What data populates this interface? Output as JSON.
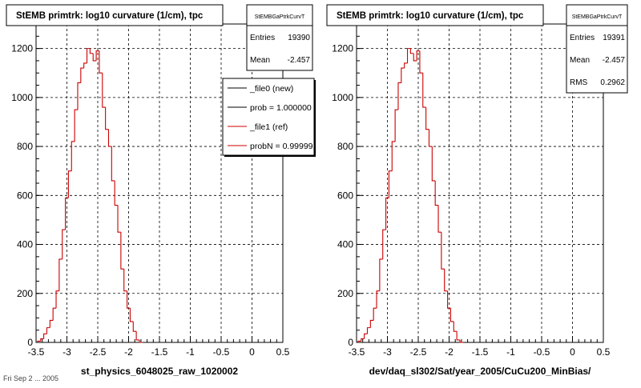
{
  "panels": [
    {
      "title": "StEMB primtrk: log10 curvature (1/cm), tpc",
      "xlabel": "st_physics_6048025_raw_1020002",
      "stats": {
        "name": "StEMBGaPtrkCurvT",
        "rows": [
          {
            "label": "Entries",
            "value": "19390"
          },
          {
            "label": "Mean",
            "value": "-2.457"
          }
        ]
      },
      "legend": {
        "entries": [
          {
            "label": "_file0 (new)",
            "color": "#000000"
          },
          {
            "label": "prob = 1.000000",
            "color": "#000000"
          },
          {
            "label": "_file1 (ref)",
            "color": "#cc0000"
          },
          {
            "label": "probN = 0.999991",
            "color": "#cc0000"
          }
        ]
      }
    },
    {
      "title": "StEMB primtrk: log10 curvature (1/cm), tpc",
      "xlabel": "dev/daq_sl302/Sat/year_2005/CuCu200_MinBias/",
      "stats": {
        "name": "StEMBGaPtrkCurvT",
        "rows": [
          {
            "label": "Entries",
            "value": "19391"
          },
          {
            "label": "Mean",
            "value": "-2.457"
          },
          {
            "label": "RMS",
            "value": "0.2962"
          }
        ]
      },
      "legend": null
    }
  ],
  "footer": "Fri Sep 2 ... 2005",
  "chart_data": [
    {
      "type": "bar",
      "title": "StEMB primtrk: log10 curvature (1/cm), tpc",
      "xlabel": "st_physics_6048025_raw_1020002",
      "ylabel": "",
      "xlim": [
        -3.5,
        0.5
      ],
      "ylim": [
        0,
        1300
      ],
      "xticks": [
        "-3.5",
        "-3",
        "-2.5",
        "-2",
        "-1.5",
        "-1",
        "-0.5",
        "0",
        "0.5"
      ],
      "yticks": [
        "0",
        "200",
        "400",
        "600",
        "800",
        "1000",
        "1200"
      ],
      "grid": true,
      "bin_width": 0.05,
      "x": [
        -3.45,
        -3.4,
        -3.35,
        -3.3,
        -3.25,
        -3.2,
        -3.15,
        -3.1,
        -3.05,
        -3.0,
        -2.95,
        -2.9,
        -2.85,
        -2.8,
        -2.75,
        -2.7,
        -2.65,
        -2.6,
        -2.55,
        -2.5,
        -2.45,
        -2.4,
        -2.35,
        -2.3,
        -2.25,
        -2.2,
        -2.15,
        -2.1,
        -2.05,
        -2.0,
        -1.95,
        -1.9,
        -1.85,
        -1.8
      ],
      "series": [
        {
          "name": "_file1 (ref)",
          "color": "#cc0000",
          "values": [
            5,
            15,
            35,
            60,
            90,
            140,
            210,
            340,
            460,
            590,
            700,
            820,
            950,
            1060,
            1120,
            1140,
            1200,
            1180,
            1150,
            1190,
            1100,
            960,
            870,
            800,
            660,
            560,
            450,
            300,
            210,
            140,
            85,
            45,
            10,
            0
          ]
        }
      ]
    },
    {
      "type": "bar",
      "title": "StEMB primtrk: log10 curvature (1/cm), tpc",
      "xlabel": "dev/daq_sl302/Sat/year_2005/CuCu200_MinBias/",
      "ylabel": "",
      "xlim": [
        -3.5,
        0.5
      ],
      "ylim": [
        0,
        1300
      ],
      "xticks": [
        "-3.5",
        "-3",
        "-2.5",
        "-2",
        "-1.5",
        "-1",
        "-0.5",
        "0",
        "0.5"
      ],
      "yticks": [
        "0",
        "200",
        "400",
        "600",
        "800",
        "1000",
        "1200"
      ],
      "grid": true,
      "bin_width": 0.05,
      "x": [
        -3.45,
        -3.4,
        -3.35,
        -3.3,
        -3.25,
        -3.2,
        -3.15,
        -3.1,
        -3.05,
        -3.0,
        -2.95,
        -2.9,
        -2.85,
        -2.8,
        -2.75,
        -2.7,
        -2.65,
        -2.6,
        -2.55,
        -2.5,
        -2.45,
        -2.4,
        -2.35,
        -2.3,
        -2.25,
        -2.2,
        -2.15,
        -2.1,
        -2.05,
        -2.0,
        -1.95,
        -1.9,
        -1.85,
        -1.8
      ],
      "series": [
        {
          "name": "_file1 (ref)",
          "color": "#cc0000",
          "values": [
            5,
            15,
            35,
            60,
            90,
            140,
            210,
            340,
            460,
            590,
            700,
            820,
            950,
            1060,
            1120,
            1140,
            1200,
            1180,
            1150,
            1190,
            1100,
            960,
            870,
            800,
            660,
            560,
            450,
            300,
            210,
            140,
            85,
            45,
            10,
            0
          ]
        }
      ]
    }
  ]
}
